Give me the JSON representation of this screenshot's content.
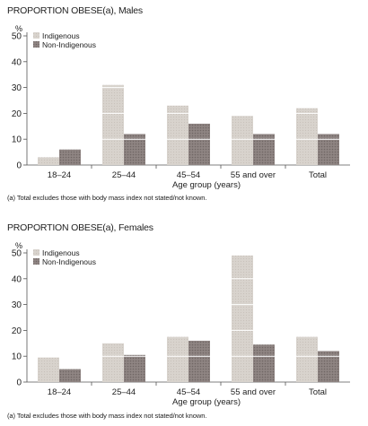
{
  "colors": {
    "indigenous_fill": "#d8d3cd",
    "indigenous_hatch": "#c8c2bb",
    "nonindigenous_fill": "#8f8583",
    "nonindigenous_hatch": "#6f6664",
    "axis": "#555555"
  },
  "chart_data": [
    {
      "type": "bar",
      "title": "PROPORTION OBESE(a), Males",
      "ylabel": "%",
      "xlabel": "Age group (years)",
      "note": "(a) Total excludes those with body mass index not stated/not known.",
      "ylim": [
        0,
        50
      ],
      "yticks": [
        0,
        10,
        20,
        30,
        40,
        50
      ],
      "grid": false,
      "legend_position": "top-left",
      "categories": [
        "18–24",
        "25–44",
        "45–54",
        "55 and over",
        "Total"
      ],
      "series": [
        {
          "name": "Indigenous",
          "values": [
            3,
            31,
            23,
            19,
            22
          ]
        },
        {
          "name": "Non-Indigenous",
          "values": [
            6,
            12,
            16,
            12,
            12
          ]
        }
      ]
    },
    {
      "type": "bar",
      "title": "PROPORTION OBESE(a), Females",
      "ylabel": "%",
      "xlabel": "Age group (years)",
      "note": "(a) Total excludes those with body mass index not stated/not known.",
      "ylim": [
        0,
        50
      ],
      "yticks": [
        0,
        10,
        20,
        30,
        40,
        50
      ],
      "grid": false,
      "legend_position": "top-left",
      "categories": [
        "18–24",
        "25–44",
        "45–54",
        "55 and over",
        "Total"
      ],
      "series": [
        {
          "name": "Indigenous",
          "values": [
            9.5,
            15,
            17.5,
            49,
            17.5
          ]
        },
        {
          "name": "Non-Indigenous",
          "values": [
            5,
            10.5,
            16,
            14.5,
            12
          ]
        }
      ]
    }
  ]
}
